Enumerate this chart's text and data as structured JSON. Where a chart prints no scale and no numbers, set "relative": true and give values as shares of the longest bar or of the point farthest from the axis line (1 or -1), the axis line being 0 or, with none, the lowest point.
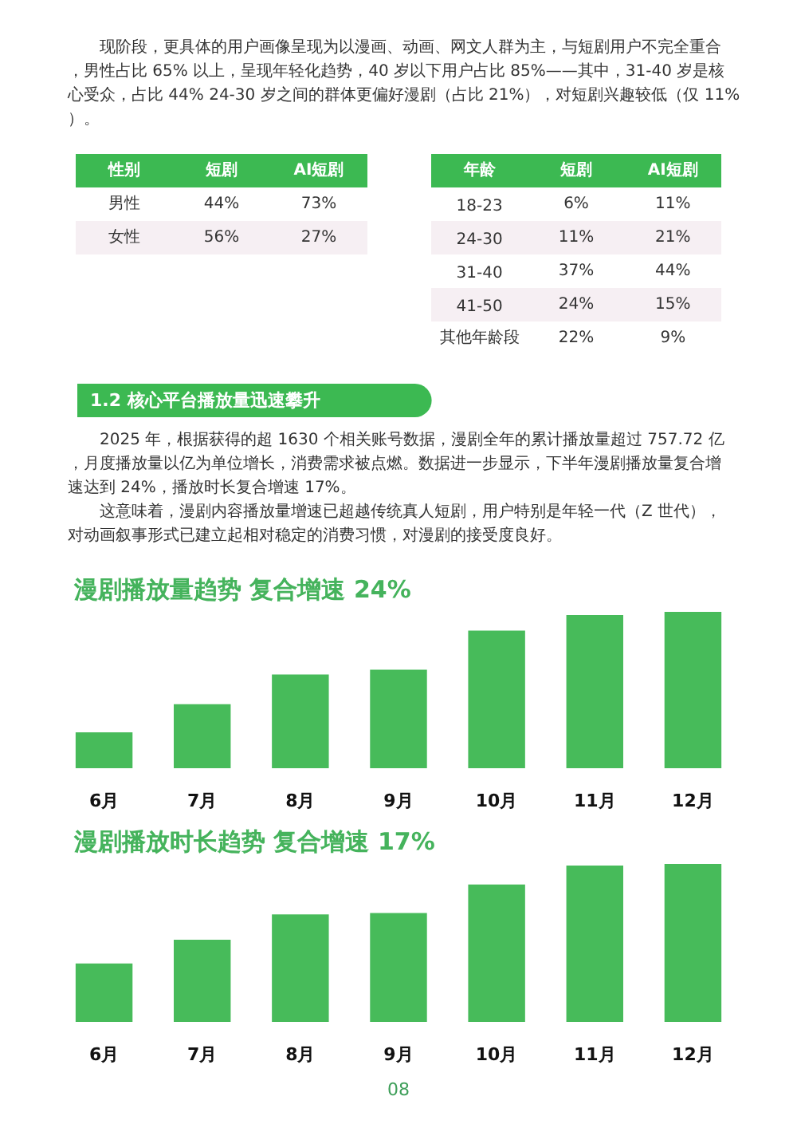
{
  "chart_data": [
    {
      "type": "other",
      "annotations": [
        "现阶段，更具体的用户画像呈现为以漫画、动画、网文人群为主，与短剧用户不完全重合，男性占比 65% 以上，呈现年轻化趋势，40 岁以下用户占比 85%——其中，31-40 岁是核心受众，占比 44% 24-30 岁之间的群体更偏好漫剧（占比 21%），对短剧兴趣较低（仅 11%）。"
      ]
    },
    {
      "type": "other",
      "ylabel": "性别",
      "categories": [
        "短剧",
        "AI短剧"
      ],
      "y_categories": [
        "男性",
        "女性"
      ],
      "cell_labels": [
        [
          "44%",
          "73%"
        ],
        [
          "56%",
          "27%"
        ]
      ]
    },
    {
      "type": "other",
      "ylabel": "年龄",
      "categories": [
        "短剧",
        "AI短剧"
      ],
      "y_categories": [
        "18-23",
        "24-30",
        "31-40",
        "41-50",
        "其他年龄段"
      ],
      "cell_labels": [
        [
          "6%",
          "11%"
        ],
        [
          "11%",
          "21%"
        ],
        [
          "37%",
          "44%"
        ],
        [
          "24%",
          "15%"
        ],
        [
          "22%",
          "9%"
        ]
      ]
    },
    {
      "type": "other",
      "title": "1.2 核心平台播放量迅速攀升",
      "annotations": [
        "2025 年，根据获得的超 1630 个相关账号数据，漫剧全年的累计播放量超过 757.72 亿，月度播放量以亿为单位增长，消费需求被点燃。数据进一步显示，下半年漫剧播放量复合增速达到 24%，播放时长复合增速 17%。",
        "这意味着，漫剧内容播放量增速已超越传统真人短剧，用户特别是年轻一代（Z 世代），对动画叙事形式已建立起相对稳定的消费习惯，对漫剧的接受度良好。"
      ]
    },
    {
      "type": "bar",
      "title": "漫剧播放量趋势 复合增速 24%",
      "categories": [
        "6月",
        "7月",
        "8月",
        "9月",
        "10月",
        "11月",
        "12月"
      ],
      "values": [
        0.23,
        0.41,
        0.6,
        0.63,
        0.88,
        0.98,
        1
      ],
      "color": "#47bb5a",
      "relative": true
    },
    {
      "type": "bar",
      "title": "漫剧播放时长趋势 复合增速 17%",
      "categories": [
        "6月",
        "7月",
        "8月",
        "9月",
        "10月",
        "11月",
        "12月"
      ],
      "values": [
        0.37,
        0.52,
        0.68,
        0.69,
        0.87,
        0.99,
        1
      ],
      "color": "#47bb5a",
      "relative": true,
      "annotations": [
        "08"
      ]
    }
  ]
}
